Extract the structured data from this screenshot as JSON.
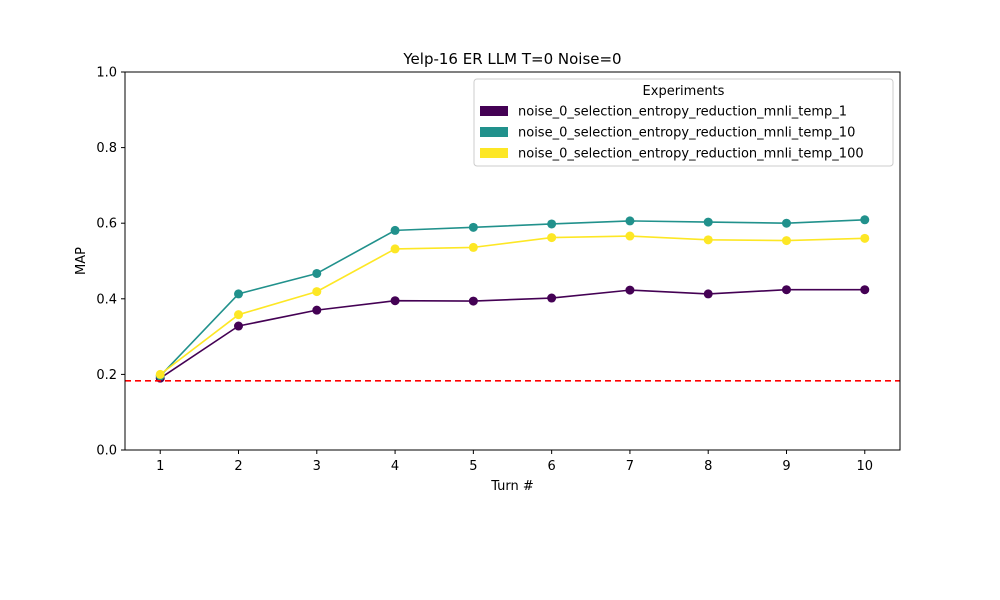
{
  "chart_data": {
    "type": "line",
    "title": "Yelp-16 ER LLM T=0 Noise=0",
    "xlabel": "Turn #",
    "ylabel": "MAP",
    "x": [
      1,
      2,
      3,
      4,
      5,
      6,
      7,
      8,
      9,
      10
    ],
    "xlim": [
      0.55,
      10.45
    ],
    "ylim": [
      0.0,
      1.0
    ],
    "yticks": [
      "0.0",
      "0.2",
      "0.4",
      "0.6",
      "0.8",
      "1.0"
    ],
    "xticks": [
      "1",
      "2",
      "3",
      "4",
      "5",
      "6",
      "7",
      "8",
      "9",
      "10"
    ],
    "grid": false,
    "legend": {
      "title": "Experiments",
      "placement": "top-right"
    },
    "series": [
      {
        "name": "noise_0_selection_entropy_reduction_mnli_temp_1",
        "color": "#440154",
        "values": [
          0.19,
          0.328,
          0.37,
          0.395,
          0.394,
          0.402,
          0.423,
          0.413,
          0.424,
          0.424
        ]
      },
      {
        "name": "noise_0_selection_entropy_reduction_mnli_temp_10",
        "color": "#21918c",
        "values": [
          0.196,
          0.413,
          0.467,
          0.581,
          0.589,
          0.598,
          0.606,
          0.603,
          0.6,
          0.609
        ]
      },
      {
        "name": "noise_0_selection_entropy_reduction_mnli_temp_100",
        "color": "#fde725",
        "values": [
          0.2,
          0.358,
          0.419,
          0.532,
          0.536,
          0.562,
          0.566,
          0.556,
          0.554,
          0.56
        ]
      }
    ],
    "reference_line": {
      "y": 0.183,
      "color": "#ff0000",
      "style": "dashed"
    }
  }
}
